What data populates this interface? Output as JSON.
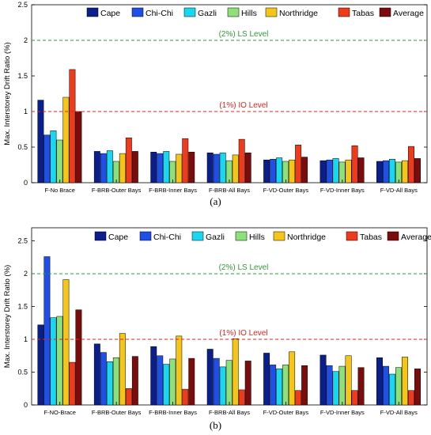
{
  "chart_data": [
    {
      "type": "bar",
      "panel_label": "(a)",
      "ylabel": "Max. Interstorey Drift Ratio (%)",
      "ylim": [
        0,
        2.5
      ],
      "yticks": [
        "0",
        "0.5",
        "1",
        "1.5",
        "2",
        "2.5"
      ],
      "categories": [
        "F-No Brace",
        "F-BRB-Outer Bays",
        "F-BRB-Inner Bays",
        "F-BRB-All Bays",
        "F-VD-Outer Bays",
        "F-VD-Inner Bays",
        "F-VD-All Bays"
      ],
      "series": [
        {
          "name": "Cape",
          "color": "#0a1e8c",
          "values": [
            1.16,
            0.44,
            0.43,
            0.42,
            0.32,
            0.31,
            0.3
          ]
        },
        {
          "name": "Chi-Chi",
          "color": "#1f4fe6",
          "values": [
            0.67,
            0.41,
            0.41,
            0.4,
            0.33,
            0.32,
            0.31
          ]
        },
        {
          "name": "Gazli",
          "color": "#19d7f0",
          "values": [
            0.73,
            0.45,
            0.44,
            0.42,
            0.35,
            0.34,
            0.33
          ]
        },
        {
          "name": "Hills",
          "color": "#8ee07a",
          "values": [
            0.6,
            0.3,
            0.3,
            0.31,
            0.3,
            0.29,
            0.29
          ]
        },
        {
          "name": "Northridge",
          "color": "#f5c518",
          "values": [
            1.2,
            0.41,
            0.4,
            0.39,
            0.32,
            0.32,
            0.31
          ]
        },
        {
          "name": "Tabas",
          "color": "#f03a1c",
          "values": [
            1.59,
            0.63,
            0.62,
            0.61,
            0.53,
            0.52,
            0.51
          ]
        },
        {
          "name": "Average",
          "color": "#7a0c0c",
          "values": [
            1.0,
            0.44,
            0.43,
            0.42,
            0.36,
            0.35,
            0.34
          ]
        }
      ],
      "reference_lines": [
        {
          "label": "(2%) LS Level",
          "value": 2.0,
          "color": "#2e9a3a"
        },
        {
          "label": "(1%) IO Level",
          "value": 1.0,
          "color": "#e8201a"
        }
      ],
      "legend": "top-right",
      "grid": false
    },
    {
      "type": "bar",
      "panel_label": "(b)",
      "ylabel": "Max. Interstorey Drift Ratio (%)",
      "ylim": [
        0,
        2.7
      ],
      "yticks": [
        "0",
        "0.5",
        "1",
        "1.5",
        "2",
        "2.5"
      ],
      "categories": [
        "F-NO-Brace",
        "F-BRB-Outer Bays",
        "F-BRB-Inner Bays",
        "F-BRB-All Bays",
        "F-VD-Outer Bays",
        "F-VD-Inner Bays",
        "F-VD-All Bays"
      ],
      "series": [
        {
          "name": "Cape",
          "color": "#0a1e8c",
          "values": [
            1.22,
            0.93,
            0.89,
            0.85,
            0.79,
            0.76,
            0.72
          ]
        },
        {
          "name": "Chi-Chi",
          "color": "#1f4fe6",
          "values": [
            2.26,
            0.8,
            0.75,
            0.71,
            0.61,
            0.6,
            0.59
          ]
        },
        {
          "name": "Gazli",
          "color": "#19d7f0",
          "values": [
            1.33,
            0.66,
            0.62,
            0.58,
            0.55,
            0.51,
            0.47
          ]
        },
        {
          "name": "Hills",
          "color": "#8ee07a",
          "values": [
            1.35,
            0.72,
            0.7,
            0.68,
            0.61,
            0.59,
            0.57
          ]
        },
        {
          "name": "Northridge",
          "color": "#f5c518",
          "values": [
            1.91,
            1.09,
            1.05,
            1.01,
            0.81,
            0.75,
            0.73
          ]
        },
        {
          "name": "Tabas",
          "color": "#f03a1c",
          "values": [
            0.65,
            0.25,
            0.24,
            0.23,
            0.22,
            0.22,
            0.22
          ]
        },
        {
          "name": "Average",
          "color": "#7a0c0c",
          "values": [
            1.45,
            0.74,
            0.71,
            0.67,
            0.6,
            0.57,
            0.55
          ]
        }
      ],
      "reference_lines": [
        {
          "label": "(2%) LS Level",
          "value": 2.0,
          "color": "#2e9a3a"
        },
        {
          "label": "(1%) IO Level",
          "value": 1.0,
          "color": "#e8201a"
        }
      ],
      "legend": "top-right",
      "grid": false
    }
  ]
}
